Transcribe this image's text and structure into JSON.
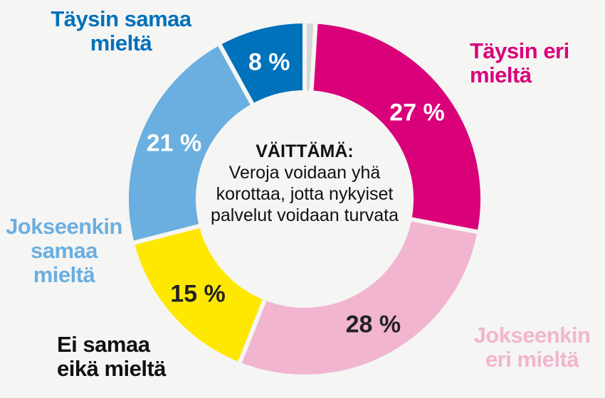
{
  "chart_data": {
    "type": "pie",
    "variant": "donut",
    "title": "VÄITTÄMÄ:",
    "subtitle": "Veroja voidaan yhä korottaa, jotta nykyiset palvelut voidaan turvata",
    "slices": [
      {
        "name": "",
        "value": 1,
        "label": "",
        "color": "#d6d6d6"
      },
      {
        "name": "Täysin eri mieltä",
        "value": 27,
        "label": "27 %",
        "color": "#d9007a"
      },
      {
        "name": "Jokseenkin eri mieltä",
        "value": 28,
        "label": "28 %",
        "color": "#f1b5d0"
      },
      {
        "name": "Ei samaa eikä mieltä",
        "value": 15,
        "label": "15 %",
        "color": "#ffe800"
      },
      {
        "name": "Jokseenkin samaa mieltä",
        "value": 21,
        "label": "21 %",
        "color": "#6aafe0"
      },
      {
        "name": "Täysin samaa mieltä",
        "value": 8,
        "label": "8 %",
        "color": "#0071bb"
      }
    ],
    "start": "top",
    "direction": "clockwise",
    "legend": "labels-outside"
  }
}
